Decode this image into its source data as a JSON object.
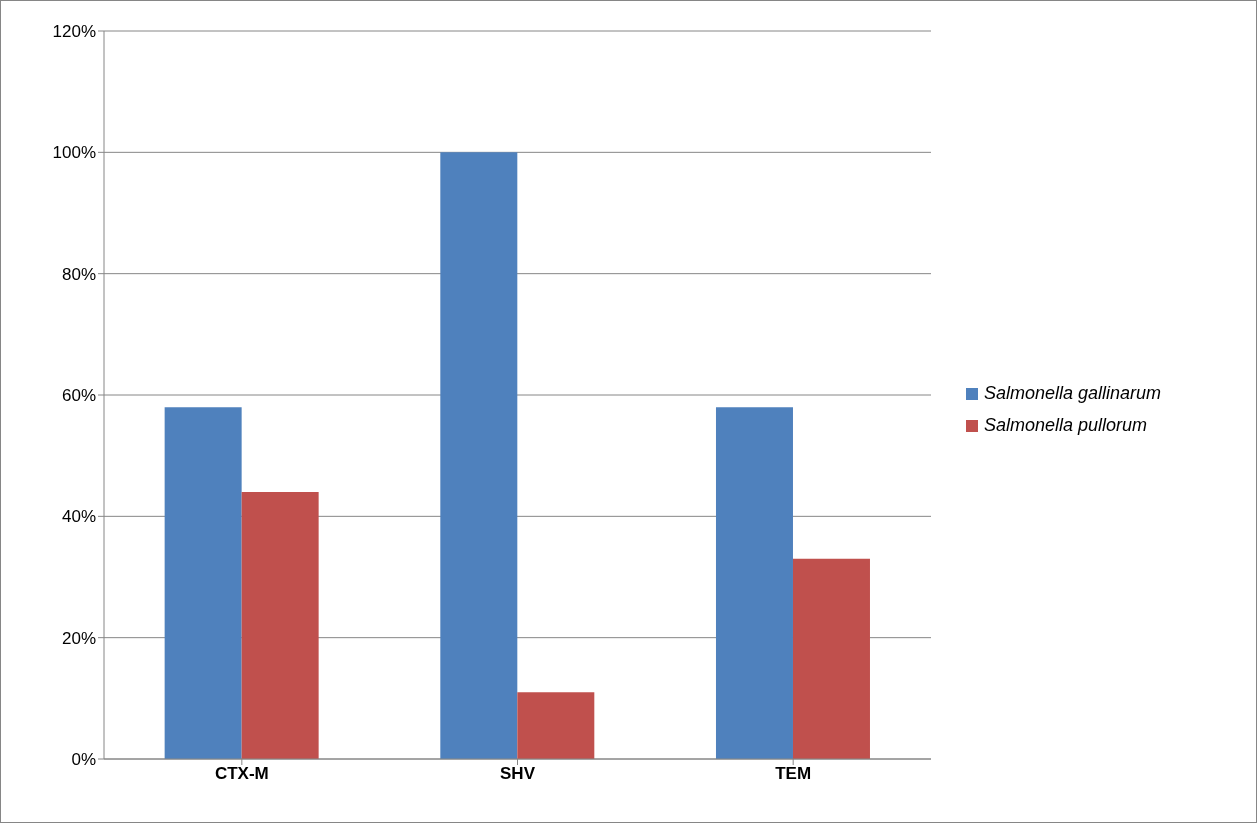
{
  "chart_data": {
    "type": "bar",
    "categories": [
      "CTX-M",
      "SHV",
      "TEM"
    ],
    "series": [
      {
        "name": "Salmonella gallinarum",
        "color": "#4f81bd",
        "values": [
          58,
          100,
          58
        ]
      },
      {
        "name": "Salmonella pullorum",
        "color": "#c0504d",
        "values": [
          44,
          11,
          33
        ]
      }
    ],
    "ylim": [
      0,
      120
    ],
    "yticks": [
      {
        "value": 0,
        "label": "0%"
      },
      {
        "value": 20,
        "label": "20%"
      },
      {
        "value": 40,
        "label": "40%"
      },
      {
        "value": 60,
        "label": "60%"
      },
      {
        "value": 80,
        "label": "80%"
      },
      {
        "value": 100,
        "label": "100%"
      },
      {
        "value": 120,
        "label": "120%"
      }
    ],
    "grid": "y",
    "legend": "right"
  }
}
